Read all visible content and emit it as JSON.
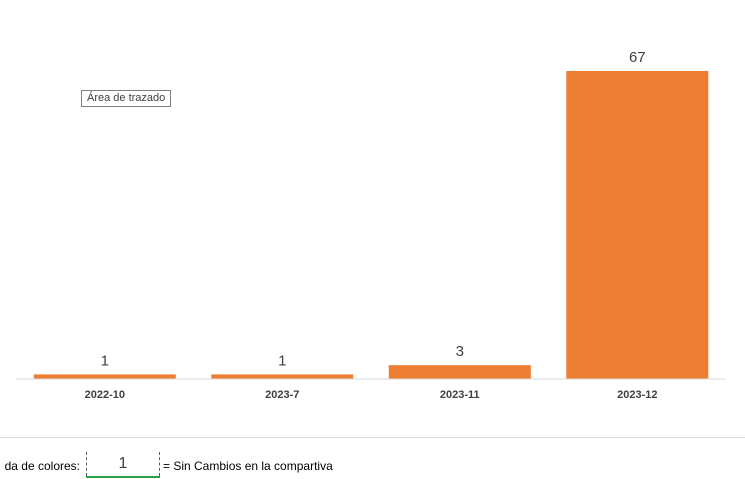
{
  "chart_data": {
    "type": "bar",
    "categories": [
      "2022-10",
      "2023-7",
      "2023-11",
      "2023-12"
    ],
    "values": [
      1,
      1,
      3,
      67
    ],
    "ylim": [
      0,
      67
    ],
    "bar_color": "#ED7D31",
    "grid": false,
    "data_labels": true
  },
  "tooltip": {
    "text": "Área de trazado"
  },
  "legend": {
    "prefix": "da de colores:",
    "cell_value": "1",
    "suffix": "= Sin Cambios en la compartiva",
    "underline_color": "#2E9E45"
  }
}
